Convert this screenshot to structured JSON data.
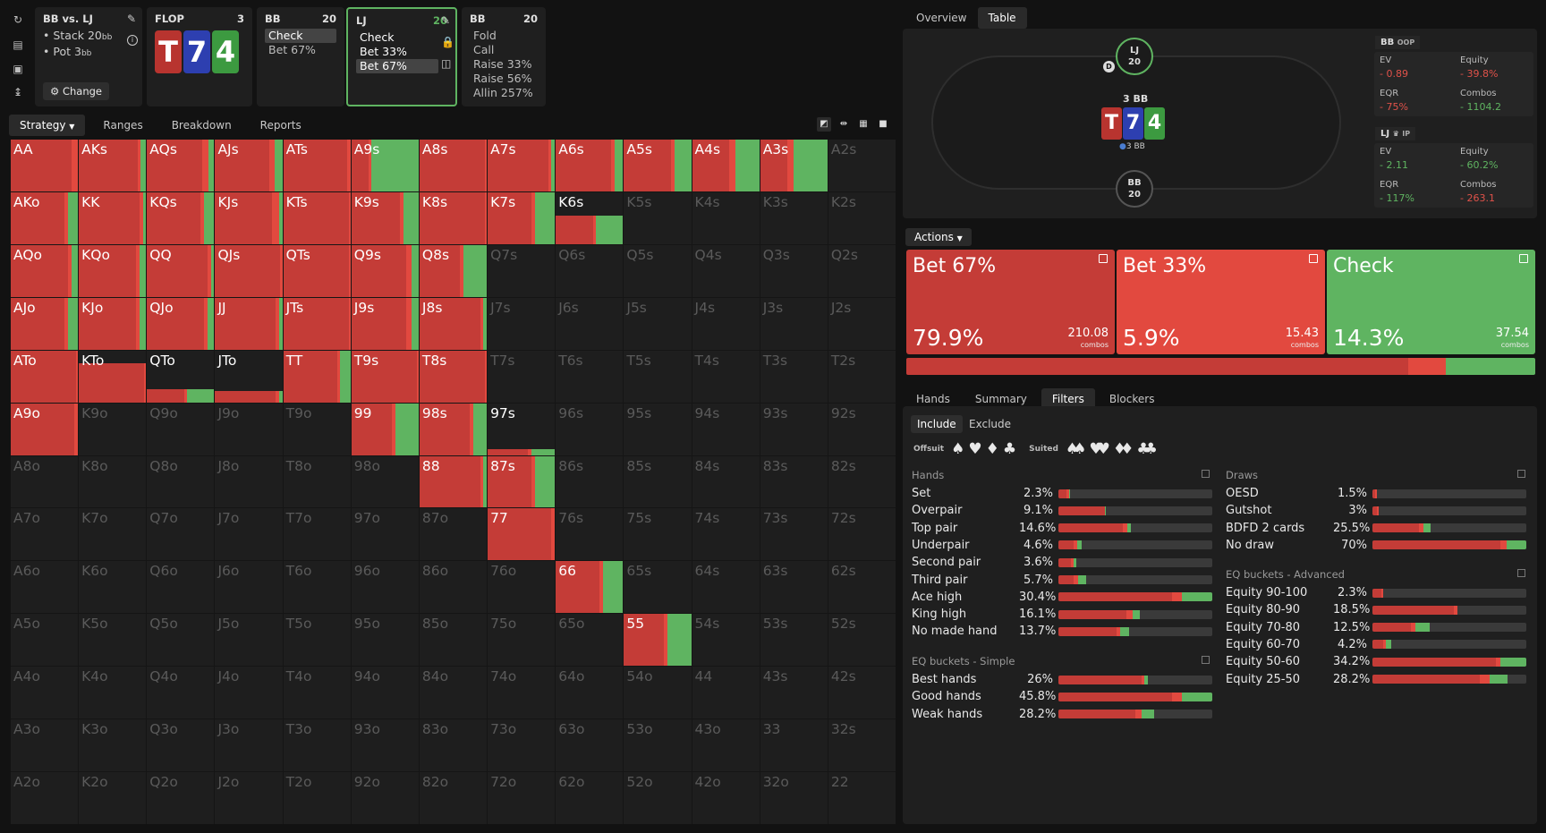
{
  "colors": {
    "bet67": "#c43c37",
    "bet33": "#e2493f",
    "check": "#5fb461",
    "bg": "#121212",
    "panel": "#1f1f1f"
  },
  "left_icons": [
    "reset-icon",
    "save-icon",
    "gamepad-icon",
    "align-icon"
  ],
  "spot_card": {
    "title": "BB vs. LJ",
    "stack": "Stack 20",
    "stack_unit": "bb",
    "pot": "Pot 3",
    "pot_unit": "bb",
    "change_label": "Change"
  },
  "flop_card": {
    "title": "FLOP",
    "count": "3",
    "cards": [
      {
        "rank": "T",
        "color": "#b8342f"
      },
      {
        "rank": "7",
        "color": "#2d3fb0"
      },
      {
        "rank": "4",
        "color": "#3c9a40"
      }
    ]
  },
  "bb1_card": {
    "title": "BB",
    "stack": "20",
    "lines": [
      "Check",
      "Bet 67%"
    ]
  },
  "lj_card": {
    "title": "LJ",
    "stack": "20",
    "lines": [
      "Check",
      "Bet 33%",
      "Bet 67%"
    ]
  },
  "bb2_card": {
    "title": "BB",
    "stack": "20",
    "lines": [
      "Fold",
      "Call",
      "Raise 33%",
      "Raise 56%",
      "Allin 257%"
    ]
  },
  "main_tabs": [
    "Strategy",
    "Ranges",
    "Breakdown",
    "Reports"
  ],
  "right_tabs": [
    "Overview",
    "Table"
  ],
  "grid": [
    [
      "AA",
      "AKs",
      "AQs",
      "AJs",
      "ATs",
      "A9s",
      "A8s",
      "A7s",
      "A6s",
      "A5s",
      "A4s",
      "A3s",
      "A2s"
    ],
    [
      "AKo",
      "KK",
      "KQs",
      "KJs",
      "KTs",
      "K9s",
      "K8s",
      "K7s",
      "K6s",
      "K5s",
      "K4s",
      "K3s",
      "K2s"
    ],
    [
      "AQo",
      "KQo",
      "QQ",
      "QJs",
      "QTs",
      "Q9s",
      "Q8s",
      "Q7s",
      "Q6s",
      "Q5s",
      "Q4s",
      "Q3s",
      "Q2s"
    ],
    [
      "AJo",
      "KJo",
      "QJo",
      "JJ",
      "JTs",
      "J9s",
      "J8s",
      "J7s",
      "J6s",
      "J5s",
      "J4s",
      "J3s",
      "J2s"
    ],
    [
      "ATo",
      "KTo",
      "QTo",
      "JTo",
      "TT",
      "T9s",
      "T8s",
      "T7s",
      "T6s",
      "T5s",
      "T4s",
      "T3s",
      "T2s"
    ],
    [
      "A9o",
      "K9o",
      "Q9o",
      "J9o",
      "T9o",
      "99",
      "98s",
      "97s",
      "96s",
      "95s",
      "94s",
      "93s",
      "92s"
    ],
    [
      "A8o",
      "K8o",
      "Q8o",
      "J8o",
      "T8o",
      "98o",
      "88",
      "87s",
      "86s",
      "85s",
      "84s",
      "83s",
      "82s"
    ],
    [
      "A7o",
      "K7o",
      "Q7o",
      "J7o",
      "T7o",
      "97o",
      "87o",
      "77",
      "76s",
      "75s",
      "74s",
      "73s",
      "72s"
    ],
    [
      "A6o",
      "K6o",
      "Q6o",
      "J6o",
      "T6o",
      "96o",
      "86o",
      "76o",
      "66",
      "65s",
      "64s",
      "63s",
      "62s"
    ],
    [
      "A5o",
      "K5o",
      "Q5o",
      "J5o",
      "T5o",
      "95o",
      "85o",
      "75o",
      "65o",
      "55",
      "54s",
      "53s",
      "52s"
    ],
    [
      "A4o",
      "K4o",
      "Q4o",
      "J4o",
      "T4o",
      "94o",
      "84o",
      "74o",
      "64o",
      "54o",
      "44",
      "43s",
      "42s"
    ],
    [
      "A3o",
      "K3o",
      "Q3o",
      "J3o",
      "T3o",
      "93o",
      "83o",
      "73o",
      "63o",
      "53o",
      "43o",
      "33",
      "32s"
    ],
    [
      "A2o",
      "K2o",
      "Q2o",
      "J2o",
      "T2o",
      "92o",
      "82o",
      "72o",
      "62o",
      "52o",
      "42o",
      "32o",
      "22"
    ]
  ],
  "grid_mix": {
    "AA": [
      0.9,
      0.1,
      0,
      1
    ],
    "AKs": [
      0.87,
      0.05,
      0.08,
      1
    ],
    "AQs": [
      0.82,
      0.1,
      0.08,
      1
    ],
    "AJs": [
      0.8,
      0.08,
      0.12,
      1
    ],
    "ATs": [
      0.95,
      0.05,
      0,
      1
    ],
    "A9s": [
      0.25,
      0.05,
      0.7,
      1
    ],
    "A8s": [
      0.97,
      0.03,
      0,
      1
    ],
    "A7s": [
      0.9,
      0.05,
      0.05,
      1
    ],
    "A6s": [
      0.82,
      0.05,
      0.13,
      1
    ],
    "A5s": [
      0.7,
      0.05,
      0.25,
      1
    ],
    "A4s": [
      0.55,
      0.1,
      0.35,
      1
    ],
    "A3s": [
      0.4,
      0.1,
      0.5,
      1
    ],
    "AKo": [
      0.8,
      0.05,
      0.15,
      1
    ],
    "KK": [
      0.9,
      0.05,
      0.05,
      1
    ],
    "KQs": [
      0.8,
      0.05,
      0.15,
      1
    ],
    "KJs": [
      0.85,
      0.1,
      0.05,
      1
    ],
    "KTs": [
      0.97,
      0.03,
      0,
      1
    ],
    "K9s": [
      0.72,
      0.05,
      0.23,
      1
    ],
    "K8s": [
      0.97,
      0.03,
      0,
      1
    ],
    "K7s": [
      0.65,
      0.05,
      0.3,
      1
    ],
    "K6s": [
      0.55,
      0.05,
      0.4,
      0.55
    ],
    "AQo": [
      0.85,
      0.05,
      0.1,
      1
    ],
    "KQo": [
      0.85,
      0.05,
      0.1,
      1
    ],
    "QQ": [
      0.9,
      0.05,
      0.05,
      1
    ],
    "QJs": [
      0.97,
      0.03,
      0,
      1
    ],
    "QTs": [
      0.97,
      0.03,
      0,
      1
    ],
    "Q9s": [
      0.82,
      0.08,
      0.1,
      1
    ],
    "Q8s": [
      0.6,
      0.05,
      0.35,
      1
    ],
    "AJo": [
      0.8,
      0.05,
      0.15,
      1
    ],
    "KJo": [
      0.85,
      0.05,
      0.1,
      1
    ],
    "QJo": [
      0.85,
      0.05,
      0.1,
      1
    ],
    "JJ": [
      0.9,
      0.05,
      0.05,
      1
    ],
    "JTs": [
      0.97,
      0.03,
      0,
      1
    ],
    "J9s": [
      0.82,
      0.08,
      0.1,
      1
    ],
    "J8s": [
      0.9,
      0.05,
      0.05,
      1
    ],
    "ATo": [
      0.97,
      0.03,
      0,
      1
    ],
    "KTo": [
      0.97,
      0.03,
      0,
      0.75
    ],
    "QTo": [
      0.55,
      0.05,
      0.4,
      0.25
    ],
    "JTo": [
      0.9,
      0.05,
      0.05,
      0.22
    ],
    "TT": [
      0.8,
      0.05,
      0.15,
      1
    ],
    "T9s": [
      0.97,
      0.03,
      0,
      1
    ],
    "T8s": [
      0.97,
      0.03,
      0,
      1
    ],
    "A9o": [
      0.95,
      0.05,
      0,
      1
    ],
    "99": [
      0.6,
      0.05,
      0.35,
      1
    ],
    "98s": [
      0.75,
      0.05,
      0.2,
      1
    ],
    "97s": [
      0.6,
      0.05,
      0.35,
      0.12
    ],
    "88": [
      0.9,
      0.05,
      0.05,
      1
    ],
    "87s": [
      0.65,
      0.05,
      0.3,
      1
    ],
    "77": [
      0.95,
      0.05,
      0,
      1
    ],
    "66": [
      0.65,
      0.05,
      0.3,
      1
    ],
    "55": [
      0.6,
      0.05,
      0.35,
      1
    ]
  },
  "table": {
    "pot_label": "3 BB",
    "board": [
      "T",
      "7",
      "4"
    ],
    "seat_top": {
      "pos": "LJ",
      "stack": "20"
    },
    "seat_bottom": {
      "pos": "BB",
      "stack": "20"
    },
    "dealer": "D",
    "bet_label": "3 BB"
  },
  "stats": {
    "bb": {
      "title": "BB",
      "tag": "OOP",
      "ev_label": "EV",
      "ev": "- 0.89",
      "eq_label": "Equity",
      "eq": "- 39.8%",
      "eqr_label": "EQR",
      "eqr": "- 75%",
      "combos_label": "Combos",
      "combos": "- 1104.2"
    },
    "lj": {
      "title": "LJ",
      "tag": "IP",
      "ev_label": "EV",
      "ev": "- 2.11",
      "eq_label": "Equity",
      "eq": "- 60.2%",
      "eqr_label": "EQR",
      "eqr": "- 117%",
      "combos_label": "Combos",
      "combos": "- 263.1"
    }
  },
  "actions_label": "Actions",
  "actions": [
    {
      "name": "Bet 67%",
      "pct": "79.9%",
      "combos": "210.08",
      "combos_label": "combos",
      "color": "#c43c37"
    },
    {
      "name": "Bet 33%",
      "pct": "5.9%",
      "combos": "15.43",
      "combos_label": "combos",
      "color": "#e2493f"
    },
    {
      "name": "Check",
      "pct": "14.3%",
      "combos": "37.54",
      "combos_label": "combos",
      "color": "#5fb461"
    }
  ],
  "summary_bar": [
    0.799,
    0.059,
    0.143
  ],
  "bottom_tabs": [
    "Hands",
    "Summary",
    "Filters",
    "Blockers"
  ],
  "filter_toggle": [
    "Include",
    "Exclude"
  ],
  "offsuit_label": "Offsuit",
  "suited_label": "Suited",
  "hands_title": "Hands",
  "hands": [
    {
      "name": "Set",
      "value": "2.3%",
      "mix": [
        0.05,
        0.02,
        0.005
      ]
    },
    {
      "name": "Overpair",
      "value": "9.1%",
      "mix": [
        0.3,
        0.005,
        0.005
      ]
    },
    {
      "name": "Top pair",
      "value": "14.6%",
      "mix": [
        0.42,
        0.03,
        0.02
      ]
    },
    {
      "name": "Underpair",
      "value": "4.6%",
      "mix": [
        0.1,
        0.02,
        0.03
      ]
    },
    {
      "name": "Second pair",
      "value": "3.6%",
      "mix": [
        0.08,
        0.02,
        0.015
      ]
    },
    {
      "name": "Third pair",
      "value": "5.7%",
      "mix": [
        0.1,
        0.03,
        0.05
      ]
    },
    {
      "name": "Ace high",
      "value": "30.4%",
      "mix": [
        0.74,
        0.06,
        0.2
      ]
    },
    {
      "name": "King high",
      "value": "16.1%",
      "mix": [
        0.44,
        0.04,
        0.05
      ]
    },
    {
      "name": "No made hand",
      "value": "13.7%",
      "mix": [
        0.38,
        0.02,
        0.06
      ]
    }
  ],
  "eq_simple_title": "EQ buckets - Simple",
  "eq_simple": [
    {
      "name": "Best hands",
      "value": "26%",
      "mix": [
        0.54,
        0.02,
        0.02
      ]
    },
    {
      "name": "Good hands",
      "value": "45.8%",
      "mix": [
        0.74,
        0.06,
        0.2
      ]
    },
    {
      "name": "Weak hands",
      "value": "28.2%",
      "mix": [
        0.5,
        0.04,
        0.08
      ]
    }
  ],
  "draws_title": "Draws",
  "draws": [
    {
      "name": "OESD",
      "value": "1.5%",
      "mix": [
        0.02,
        0.01,
        0
      ]
    },
    {
      "name": "Gutshot",
      "value": "3%",
      "mix": [
        0.03,
        0.01,
        0
      ]
    },
    {
      "name": "BDFD 2 cards",
      "value": "25.5%",
      "mix": [
        0.3,
        0.03,
        0.05
      ]
    },
    {
      "name": "No draw",
      "value": "70%",
      "mix": [
        0.83,
        0.04,
        0.13
      ]
    }
  ],
  "eq_adv_title": "EQ buckets - Advanced",
  "eq_adv": [
    {
      "name": "Equity 90-100",
      "value": "2.3%",
      "mix": [
        0.06,
        0.01,
        0
      ]
    },
    {
      "name": "Equity 80-90",
      "value": "18.5%",
      "mix": [
        0.53,
        0.02,
        0
      ]
    },
    {
      "name": "Equity 70-80",
      "value": "12.5%",
      "mix": [
        0.25,
        0.03,
        0.09
      ]
    },
    {
      "name": "Equity 60-70",
      "value": "4.2%",
      "mix": [
        0.07,
        0.02,
        0.03
      ]
    },
    {
      "name": "Equity 50-60",
      "value": "34.2%",
      "mix": [
        0.8,
        0.03,
        0.17
      ]
    },
    {
      "name": "Equity 25-50",
      "value": "28.2%",
      "mix": [
        0.7,
        0.06,
        0.12
      ]
    }
  ]
}
